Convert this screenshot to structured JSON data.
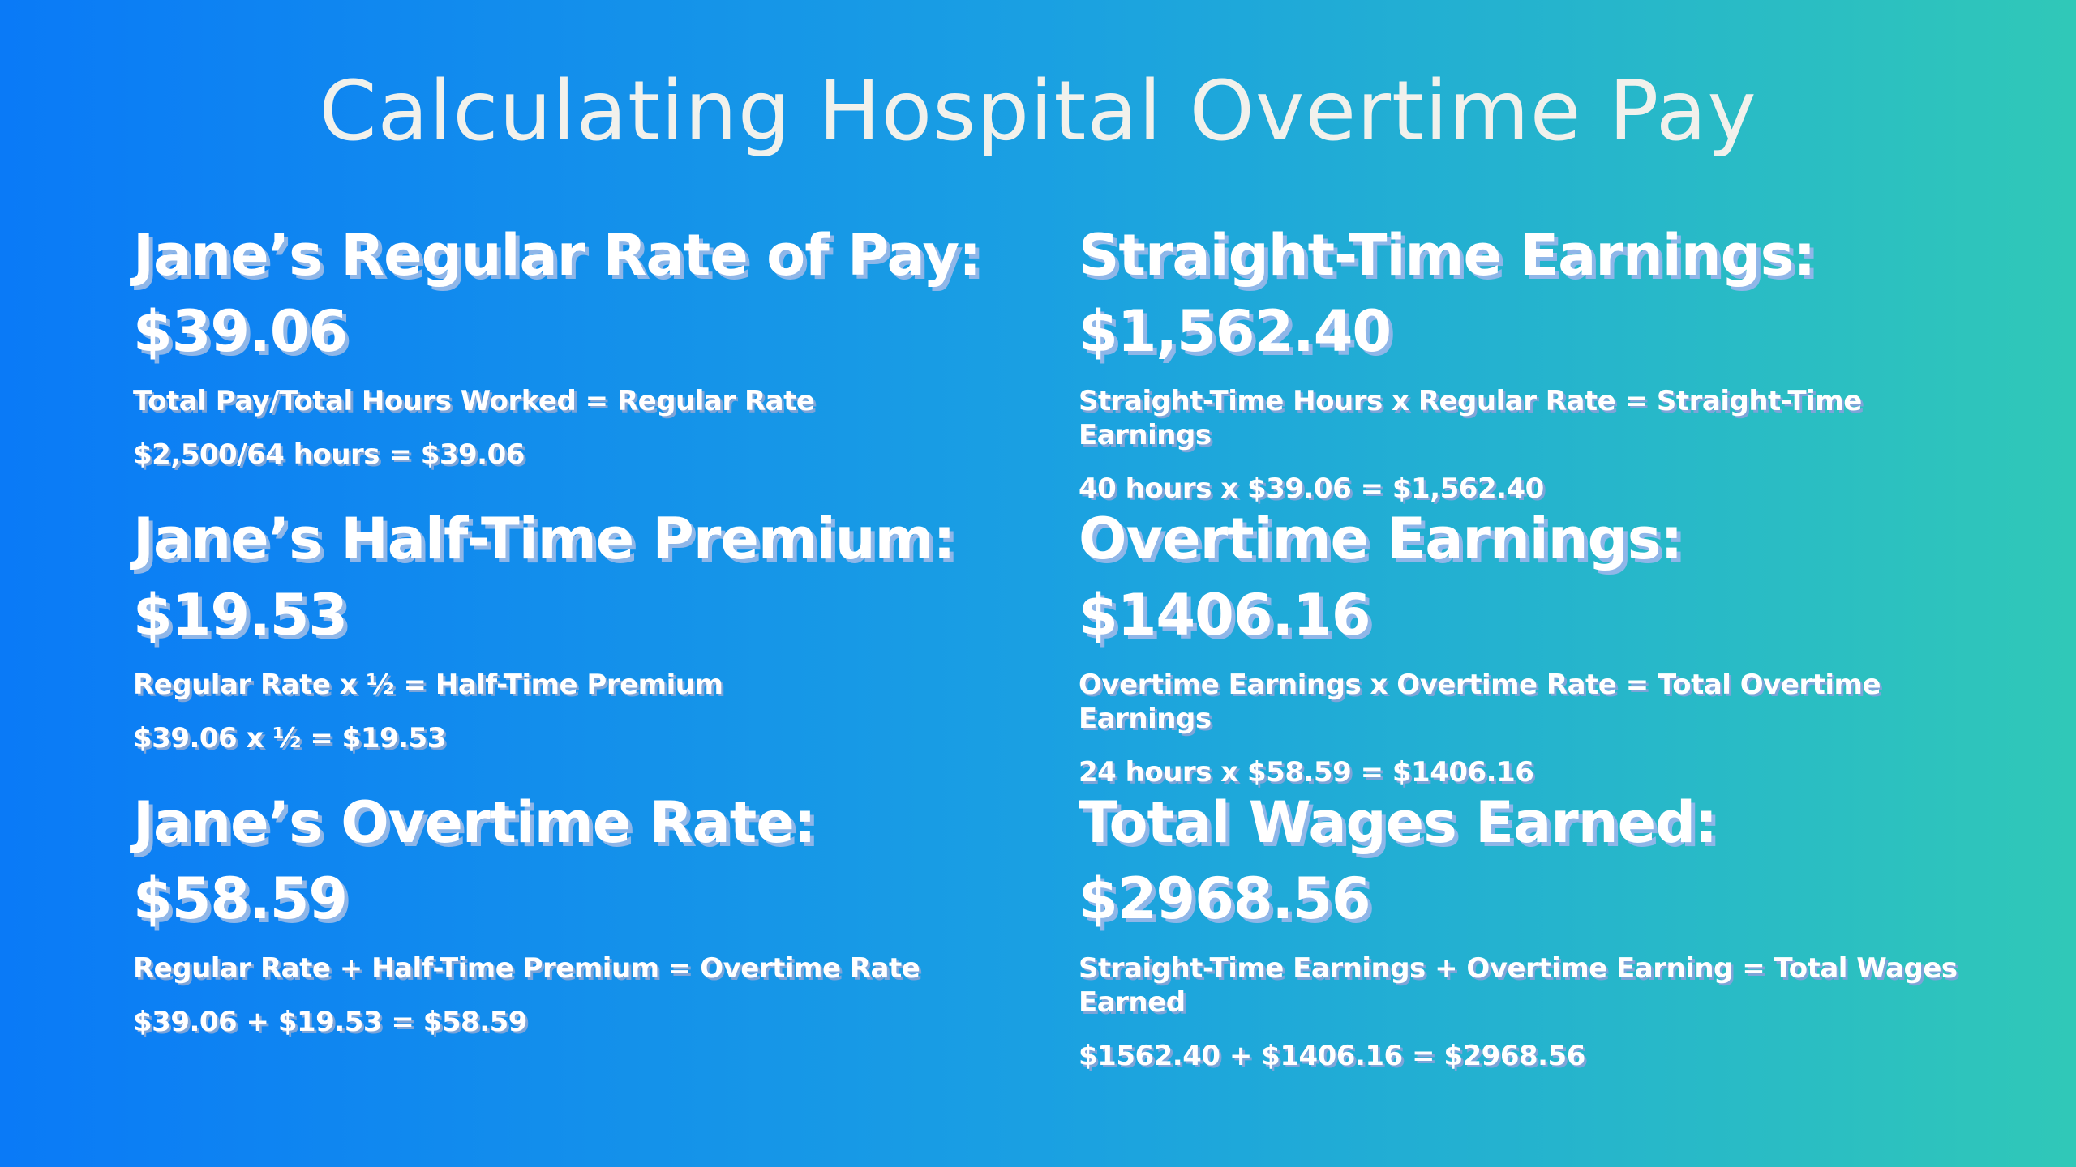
{
  "title": "Calculating Hospital Overtime Pay",
  "left_column": [
    {
      "label": "Jane’s Regular Rate of Pay:",
      "amount": "$39.06",
      "formula": "Total Pay/Total Hours Worked = Regular Rate",
      "example": "$2,500/64 hours = $39.06"
    },
    {
      "label": "Jane’s Half-Time Premium:",
      "amount": "$19.53",
      "formula": "Regular Rate x ½ = Half-Time Premium",
      "example": "$39.06 x ½ = $19.53"
    },
    {
      "label": "Jane’s Overtime Rate:",
      "amount": "$58.59",
      "formula": "Regular Rate + Half-Time Premium = Overtime Rate",
      "example": "$39.06 + $19.53 = $58.59"
    }
  ],
  "right_column": [
    {
      "label": "Straight-Time Earnings:",
      "amount": "$1,562.40",
      "formula": "Straight-Time Hours x Regular Rate = Straight-Time Earnings",
      "example": "40 hours x $39.06 = $1,562.40"
    },
    {
      "label": "Overtime Earnings:",
      "amount": "$1406.16",
      "formula": "Overtime Earnings x Overtime Rate = Total Overtime Earnings",
      "example": "24 hours x $58.59 = $1406.16"
    },
    {
      "label": "Total Wages Earned:",
      "amount": "$2968.56",
      "formula": "Straight-Time Earnings + Overtime Earning = Total Wages Earned",
      "example": "$1562.40 + $1406.16 = $2968.56"
    }
  ],
  "colors": {
    "gradient_start": "#0a7af7",
    "gradient_mid": "#1aa0e2",
    "gradient_end": "#30c8b8",
    "title_text": "#f1f1ec",
    "heading_shadow": "#8fb6e8"
  }
}
